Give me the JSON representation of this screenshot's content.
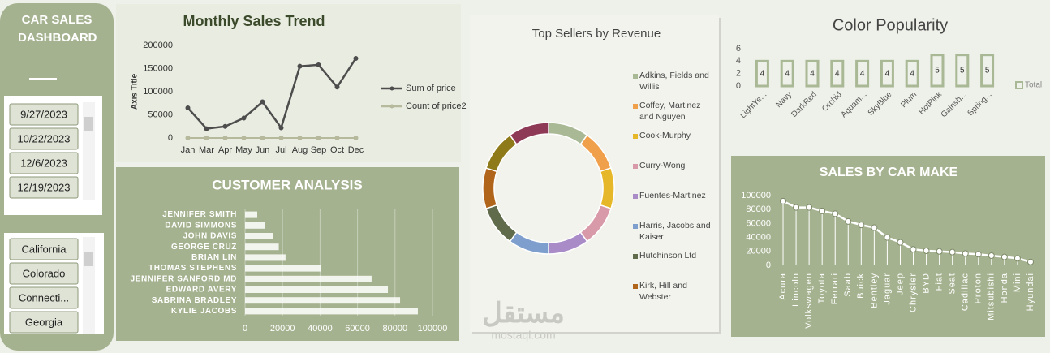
{
  "sidebar": {
    "title": "CAR SALES DASHBOARD",
    "date_slicer": [
      "9/27/2023",
      "10/22/2023",
      "12/6/2023",
      "12/19/2023"
    ],
    "state_slicer": [
      "California",
      "Colorado",
      "Connecti...",
      "Georgia"
    ]
  },
  "watermark": {
    "text": "مستقل",
    "url": "mostaql.com"
  },
  "chart_data": [
    {
      "type": "line",
      "title": "Monthly Sales Trend",
      "y_label": "Axis Title",
      "categories": [
        "Jan",
        "Mar",
        "Apr",
        "May",
        "Jun",
        "Jul",
        "Aug",
        "Sep",
        "Oct",
        "Dec"
      ],
      "series": [
        {
          "name": "Sum of price",
          "color": "#4d4d4d",
          "values": [
            65000,
            20000,
            25000,
            43000,
            78000,
            22000,
            155000,
            158000,
            110000,
            172000
          ]
        },
        {
          "name": "Count of price2",
          "color": "#b6b99c",
          "values": [
            0,
            0,
            0,
            0,
            0,
            0,
            0,
            0,
            0,
            0
          ]
        }
      ],
      "ylim": [
        0,
        200000
      ],
      "yticks": [
        0,
        50000,
        100000,
        150000,
        200000
      ],
      "legend": "right",
      "markers": true
    },
    {
      "type": "bar",
      "orientation": "horizontal",
      "title": "CUSTOMER ANALYSIS",
      "categories": [
        "JENNIFER SMITH",
        "DAVID SIMMONS",
        "JOHN DAVIS",
        "GEORGE CRUZ",
        "BRIAN LIN",
        "THOMAS STEPHENS",
        "JENNIFER SANFORD MD",
        "EDWARD AVERY",
        "SABRINA BRADLEY",
        "KYLIE JACOBS"
      ],
      "values": [
        6500,
        10400,
        15000,
        18000,
        21600,
        40700,
        67500,
        76200,
        82700,
        92200
      ],
      "color": "#ffffff",
      "xlim": [
        0,
        100000
      ],
      "xticks": [
        0,
        20000,
        40000,
        60000,
        80000,
        100000
      ],
      "grid": true
    },
    {
      "type": "pie",
      "title": "Top Sellers by Revenue",
      "donut": true,
      "categories": [
        "Adkins, Fields and Willis",
        "Coffey, Martinez and Nguyen",
        "Cook-Murphy",
        "Curry-Wong",
        "Fuentes-Martinez",
        "Harris, Jacobs and Kaiser",
        "Hutchinson Ltd",
        "Kirk, Hill and Webster",
        null,
        null
      ],
      "values": [
        10,
        10,
        10,
        10,
        10,
        10,
        10,
        10,
        10,
        10
      ],
      "colors": [
        "#a9b895",
        "#f0a04b",
        "#e6b829",
        "#d89aa8",
        "#a98bc8",
        "#7e9fcd",
        "#5f6b4a",
        "#b0651a",
        "#8f7a1a",
        "#8e3a56"
      ],
      "legend": "right"
    },
    {
      "type": "bar",
      "title": "Color Popularity",
      "categories": [
        "LightYe...",
        "Navy",
        "DarkRed",
        "Orchid",
        "Aquam...",
        "SkyBlue",
        "Plum",
        "HotPink",
        "Gainsb...",
        "Spring..."
      ],
      "series": [
        {
          "name": "Total",
          "color": "#a9b895",
          "values": [
            4,
            4,
            4,
            4,
            4,
            4,
            4,
            5,
            5,
            5
          ]
        }
      ],
      "ylim": [
        0,
        6
      ],
      "yticks": [
        0,
        2,
        4,
        6
      ],
      "legend": "right",
      "data_labels": true
    },
    {
      "type": "line",
      "title": "SALES BY CAR MAKE",
      "categories": [
        "Acura",
        "Lincoln",
        "Volkswagen",
        "Toyota",
        "Ferrari",
        "Saab",
        "Buick",
        "Bentley",
        "Jaguar",
        "Jeep",
        "Chrysler",
        "BYD",
        "Fiat",
        "Seat",
        "Cadillac",
        "Proton",
        "Mitsubishi",
        "Honda",
        "Mini",
        "Hyundai"
      ],
      "values": [
        92000,
        83000,
        83000,
        78000,
        74000,
        63000,
        58000,
        54000,
        40000,
        33000,
        23000,
        21000,
        20000,
        19000,
        17000,
        16000,
        14000,
        12000,
        10000,
        5000
      ],
      "color": "#ffffff",
      "ylim": [
        0,
        100000
      ],
      "yticks": [
        0,
        20000,
        40000,
        60000,
        80000,
        100000
      ],
      "markers": true,
      "drop_lines": true
    }
  ]
}
